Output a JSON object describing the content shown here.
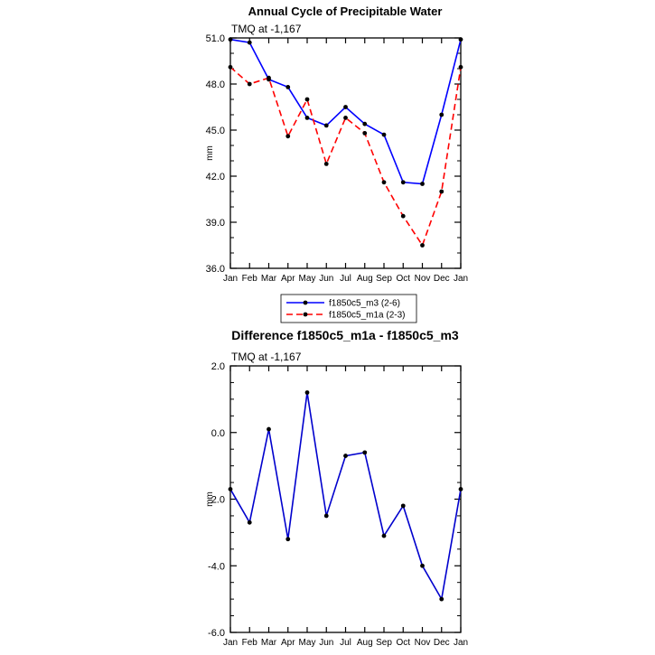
{
  "figure": {
    "background": "#ffffff"
  },
  "chart_data": [
    {
      "id": "annual-cycle",
      "type": "line",
      "title": "Annual Cycle of Precipitable Water",
      "subtitle": "TMQ at -1,167",
      "xlabel": "",
      "ylabel": "mm",
      "ylim": [
        36.0,
        51.0
      ],
      "yticks": [
        36.0,
        39.0,
        42.0,
        45.0,
        48.0,
        51.0
      ],
      "ytick_labels": [
        "36.0",
        "39.0",
        "42.0",
        "45.0",
        "48.0",
        "51.0"
      ],
      "yminor_step": 1.0,
      "grid": false,
      "categories": [
        "Jan",
        "Feb",
        "Mar",
        "Apr",
        "May",
        "Jun",
        "Jul",
        "Aug",
        "Sep",
        "Oct",
        "Nov",
        "Dec",
        "Jan"
      ],
      "legend": {
        "position": "below-center",
        "boxed": true,
        "entries": [
          "f1850c5_m3 (2-6)",
          "f1850c5_m1a (2-3)"
        ]
      },
      "series": [
        {
          "name": "f1850c5_m3 (2-6)",
          "color": "#0000ff",
          "style": "solid",
          "marker": "filled-circle",
          "marker_color": "#000000",
          "values": [
            50.9,
            50.7,
            48.3,
            47.8,
            45.8,
            45.3,
            46.5,
            45.4,
            44.7,
            41.6,
            41.5,
            46.0,
            50.9
          ]
        },
        {
          "name": "f1850c5_m1a (2-3)",
          "color": "#ff0000",
          "style": "dashed",
          "marker": "filled-circle",
          "marker_color": "#000000",
          "values": [
            49.1,
            48.0,
            48.4,
            44.6,
            47.0,
            42.8,
            45.8,
            44.8,
            41.6,
            39.4,
            37.5,
            41.0,
            49.1
          ]
        }
      ]
    },
    {
      "id": "difference",
      "type": "line",
      "title": "Difference f1850c5_m1a - f1850c5_m3",
      "subtitle": "TMQ at -1,167",
      "xlabel": "",
      "ylabel": "mm",
      "ylim": [
        -6.0,
        2.0
      ],
      "yticks": [
        -6.0,
        -4.0,
        -2.0,
        0.0,
        2.0
      ],
      "ytick_labels": [
        "-6.0",
        "-4.0",
        "-2.0",
        "0.0",
        "2.0"
      ],
      "yminor_step": 0.5,
      "grid": false,
      "categories": [
        "Jan",
        "Feb",
        "Mar",
        "Apr",
        "May",
        "Jun",
        "Jul",
        "Aug",
        "Sep",
        "Oct",
        "Nov",
        "Dec",
        "Jan"
      ],
      "legend": null,
      "series": [
        {
          "name": "f1850c5_m1a - f1850c5_m3",
          "color": "#0000cd",
          "style": "solid",
          "marker": "filled-circle",
          "marker_color": "#000000",
          "values": [
            -1.7,
            -2.7,
            0.1,
            -3.2,
            1.2,
            -2.5,
            -0.7,
            -0.6,
            -3.1,
            -2.2,
            -4.0,
            -5.0,
            -1.7
          ]
        }
      ]
    }
  ]
}
